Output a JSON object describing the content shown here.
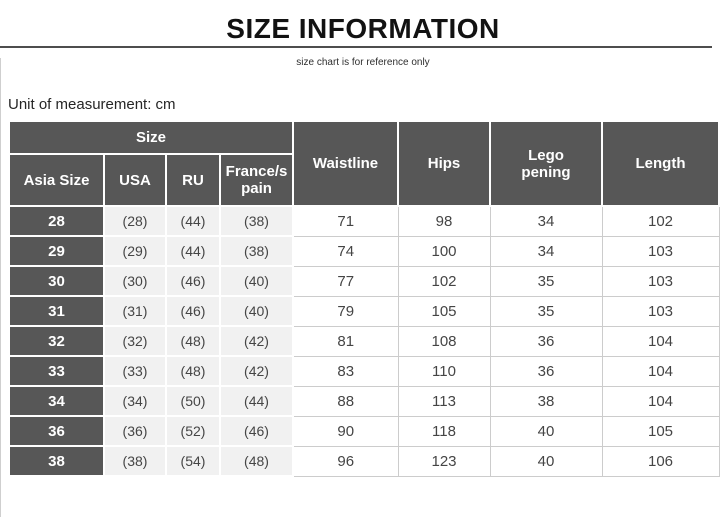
{
  "page": {
    "title": "SIZE INFORMATION",
    "subtitle": "size chart is for reference only",
    "unit_label": "Unit of measurement: cm"
  },
  "table": {
    "columns": {
      "group": "Size",
      "sub": [
        "Asia Size",
        "USA",
        "RU",
        "France/s\npain"
      ],
      "measures": [
        "Waistline",
        "Hips",
        "Lego\npening",
        "Length"
      ]
    },
    "rows": [
      [
        "28",
        "(28)",
        "(44)",
        "(38)",
        "71",
        "98",
        "34",
        "102"
      ],
      [
        "29",
        "(29)",
        "(44)",
        "(38)",
        "74",
        "100",
        "34",
        "103"
      ],
      [
        "30",
        "(30)",
        "(46)",
        "(40)",
        "77",
        "102",
        "35",
        "103"
      ],
      [
        "31",
        "(31)",
        "(46)",
        "(40)",
        "79",
        "105",
        "35",
        "103"
      ],
      [
        "32",
        "(32)",
        "(48)",
        "(42)",
        "81",
        "108",
        "36",
        "104"
      ],
      [
        "33",
        "(33)",
        "(48)",
        "(42)",
        "83",
        "110",
        "36",
        "104"
      ],
      [
        "34",
        "(34)",
        "(50)",
        "(44)",
        "88",
        "113",
        "38",
        "104"
      ],
      [
        "36",
        "(36)",
        "(52)",
        "(46)",
        "90",
        "118",
        "40",
        "105"
      ],
      [
        "38",
        "(38)",
        "(54)",
        "(48)",
        "96",
        "123",
        "40",
        "106"
      ]
    ]
  },
  "colors": {
    "header_bg": "#575757",
    "light_cell_bg": "#f1f1f1",
    "plain_border": "#cccccc",
    "text": "#454545",
    "rule": "#4d4d4d"
  }
}
